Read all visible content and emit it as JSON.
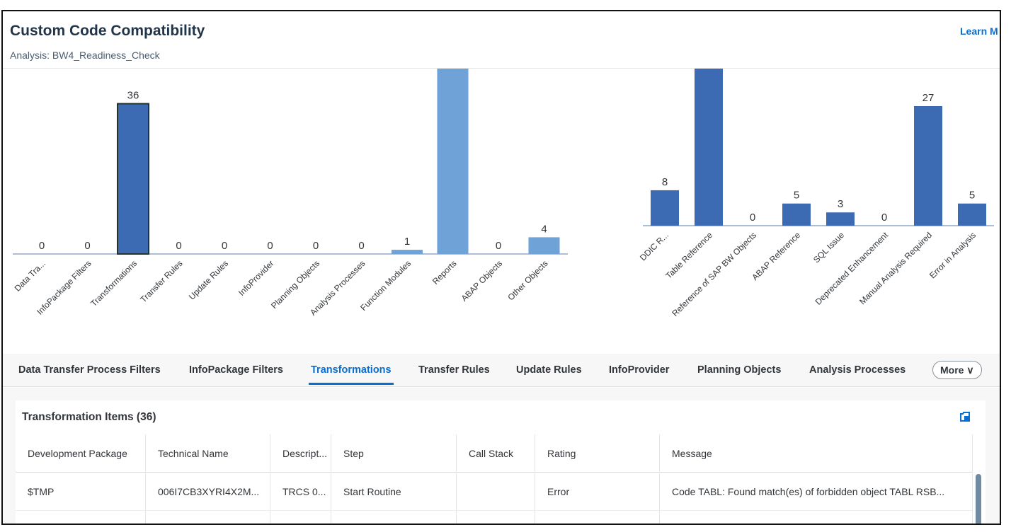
{
  "header": {
    "title": "Custom Code Compatibility",
    "subtitle": "Analysis: BW4_Readiness_Check",
    "learn_more": "Learn M"
  },
  "colors": {
    "accent": "#0a6ed1",
    "bar_dark": "#3d6bb3",
    "bar_light": "#6fa2d6"
  },
  "chart_data": [
    {
      "type": "bar",
      "categories": [
        "Data Tra...",
        "InfoPackage Filters",
        "Transformations",
        "Transfer Rules",
        "Update Rules",
        "InfoProvider",
        "Planning Objects",
        "Analysis Processes",
        "Function Modules",
        "Reports",
        "ABAP Objects",
        "Other Objects"
      ],
      "values": [
        0,
        0,
        36,
        0,
        0,
        0,
        0,
        0,
        1,
        null,
        0,
        4
      ],
      "data_labels": [
        "0",
        "0",
        "36",
        "0",
        "0",
        "0",
        "0",
        "0",
        "1",
        "",
        "0",
        "4"
      ],
      "selected": "Transformations",
      "grid": false
    },
    {
      "type": "bar",
      "categories": [
        "DDIC R...",
        "Table Reference",
        "Reference of SAP BW Objects",
        "ABAP Reference",
        "SQL Issue",
        "Deprecated Enhancement",
        "Manual Analysis Required",
        "Error in Analysis"
      ],
      "values": [
        8,
        null,
        0,
        5,
        3,
        0,
        27,
        5
      ],
      "data_labels": [
        "8",
        "",
        "0",
        "5",
        "3",
        "0",
        "27",
        "5"
      ],
      "grid": false
    }
  ],
  "tabs": [
    {
      "label": "Data Transfer Process Filters"
    },
    {
      "label": "InfoPackage Filters"
    },
    {
      "label": "Transformations",
      "selected": true
    },
    {
      "label": "Transfer Rules"
    },
    {
      "label": "Update Rules"
    },
    {
      "label": "InfoProvider"
    },
    {
      "label": "Planning Objects"
    },
    {
      "label": "Analysis Processes"
    }
  ],
  "more_label": "More",
  "table": {
    "title": "Transformation Items (36)",
    "columns": [
      "Development Package",
      "Technical Name",
      "Descript...",
      "Step",
      "Call Stack",
      "Rating",
      "Message"
    ],
    "rows": [
      [
        "$TMP",
        "006I7CB3XYRI4X2M...",
        "TRCS 0...",
        "Start Routine",
        "",
        "Error",
        "Code TABL: Found match(es) of forbidden object TABL RSB..."
      ]
    ]
  }
}
